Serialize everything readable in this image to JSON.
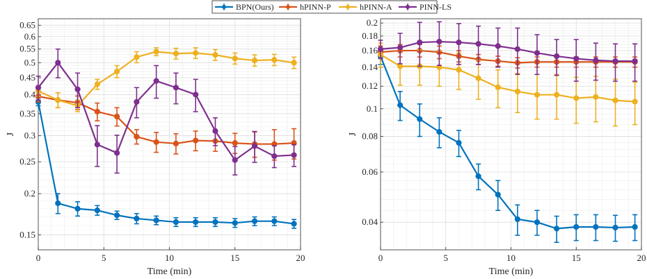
{
  "legend": {
    "placement": "top-center",
    "entries": [
      {
        "name": "BPN(Ours)",
        "color": "#0072BD"
      },
      {
        "name": "hPINN-P",
        "color": "#D95319"
      },
      {
        "name": "hPINN-A",
        "color": "#EDB120"
      },
      {
        "name": "PINN-LS",
        "color": "#7E2F8E"
      }
    ]
  },
  "chart_data": [
    {
      "type": "line",
      "yscale": "log",
      "xlabel": "Time (min)",
      "ylabel": "J",
      "xlim": [
        0,
        20
      ],
      "ylim": [
        0.135,
        0.68
      ],
      "xticks": [
        0,
        5,
        10,
        15,
        20
      ],
      "yticks": [
        0.15,
        0.2,
        0.25,
        0.3,
        0.35,
        0.4,
        0.45,
        0.5,
        0.55,
        0.6,
        0.65
      ],
      "grid": true,
      "x": [
        0,
        1.5,
        3,
        4.5,
        6,
        7.5,
        9,
        10.5,
        12,
        13.5,
        15,
        16.5,
        18,
        19.5
      ],
      "series": [
        {
          "name": "BPN(Ours)",
          "color": "#0072BD",
          "values": [
            0.38,
            0.187,
            0.18,
            0.178,
            0.172,
            0.168,
            0.166,
            0.164,
            0.164,
            0.164,
            0.163,
            0.165,
            0.165,
            0.162
          ],
          "errors": [
            0.01,
            0.013,
            0.009,
            0.006,
            0.005,
            0.006,
            0.005,
            0.005,
            0.005,
            0.005,
            0.005,
            0.005,
            0.005,
            0.005
          ]
        },
        {
          "name": "hPINN-P",
          "color": "#D95319",
          "values": [
            0.395,
            0.385,
            0.378,
            0.355,
            0.343,
            0.298,
            0.287,
            0.284,
            0.29,
            0.289,
            0.285,
            0.283,
            0.283,
            0.285
          ],
          "errors": [
            0.015,
            0.02,
            0.018,
            0.022,
            0.022,
            0.015,
            0.02,
            0.02,
            0.02,
            0.02,
            0.02,
            0.025,
            0.03,
            0.03
          ]
        },
        {
          "name": "hPINN-A",
          "color": "#EDB120",
          "values": [
            0.41,
            0.385,
            0.37,
            0.43,
            0.47,
            0.52,
            0.54,
            0.533,
            0.535,
            0.528,
            0.515,
            0.508,
            0.51,
            0.5
          ],
          "errors": [
            0.015,
            0.02,
            0.015,
            0.015,
            0.02,
            0.02,
            0.015,
            0.02,
            0.02,
            0.02,
            0.02,
            0.02,
            0.02,
            0.02
          ]
        },
        {
          "name": "PINN-LS",
          "color": "#7E2F8E",
          "values": [
            0.42,
            0.5,
            0.415,
            0.282,
            0.266,
            0.38,
            0.44,
            0.42,
            0.4,
            0.31,
            0.253,
            0.279,
            0.26,
            0.262
          ],
          "errors": [
            0.035,
            0.05,
            0.05,
            0.04,
            0.035,
            0.04,
            0.05,
            0.045,
            0.045,
            0.03,
            0.025,
            0.03,
            0.02,
            0.02
          ]
        }
      ]
    },
    {
      "type": "line",
      "yscale": "log",
      "xlabel": "Time (min)",
      "ylabel": "J",
      "xlim": [
        0,
        20
      ],
      "ylim": [
        0.032,
        0.207
      ],
      "xticks": [
        0,
        5,
        10,
        15,
        20
      ],
      "yticks": [
        0.04,
        0.06,
        0.08,
        0.1,
        0.12,
        0.14,
        0.16,
        0.18,
        0.2
      ],
      "grid": true,
      "x": [
        0,
        1.5,
        3,
        4.5,
        6,
        7.5,
        9,
        10.5,
        12,
        13.5,
        15,
        16.5,
        18,
        19.5
      ],
      "series": [
        {
          "name": "BPN(Ours)",
          "color": "#0072BD",
          "values": [
            0.153,
            0.103,
            0.092,
            0.083,
            0.076,
            0.058,
            0.05,
            0.041,
            0.04,
            0.038,
            0.0385,
            0.0385,
            0.0383,
            0.0385
          ],
          "errors": [
            0.01,
            0.012,
            0.012,
            0.01,
            0.008,
            0.006,
            0.006,
            0.005,
            0.004,
            0.004,
            0.004,
            0.004,
            0.004,
            0.004
          ]
        },
        {
          "name": "hPINN-P",
          "color": "#D95319",
          "values": [
            0.158,
            0.16,
            0.16,
            0.158,
            0.153,
            0.149,
            0.147,
            0.145,
            0.146,
            0.146,
            0.146,
            0.146,
            0.146,
            0.146
          ],
          "errors": [
            0.008,
            0.008,
            0.008,
            0.008,
            0.007,
            0.006,
            0.006,
            0.006,
            0.006,
            0.006,
            0.006,
            0.006,
            0.006,
            0.006
          ]
        },
        {
          "name": "hPINN-A",
          "color": "#EDB120",
          "values": [
            0.155,
            0.141,
            0.141,
            0.14,
            0.137,
            0.128,
            0.119,
            0.115,
            0.112,
            0.112,
            0.109,
            0.11,
            0.107,
            0.106
          ],
          "errors": [
            0.015,
            0.02,
            0.02,
            0.02,
            0.02,
            0.02,
            0.018,
            0.018,
            0.02,
            0.02,
            0.02,
            0.02,
            0.02,
            0.018
          ]
        },
        {
          "name": "PINN-LS",
          "color": "#7E2F8E",
          "values": [
            0.162,
            0.164,
            0.171,
            0.172,
            0.171,
            0.169,
            0.166,
            0.162,
            0.157,
            0.153,
            0.15,
            0.148,
            0.147,
            0.147
          ],
          "errors": [
            0.012,
            0.02,
            0.03,
            0.03,
            0.028,
            0.026,
            0.026,
            0.03,
            0.025,
            0.022,
            0.025,
            0.022,
            0.022,
            0.022
          ]
        }
      ]
    }
  ]
}
